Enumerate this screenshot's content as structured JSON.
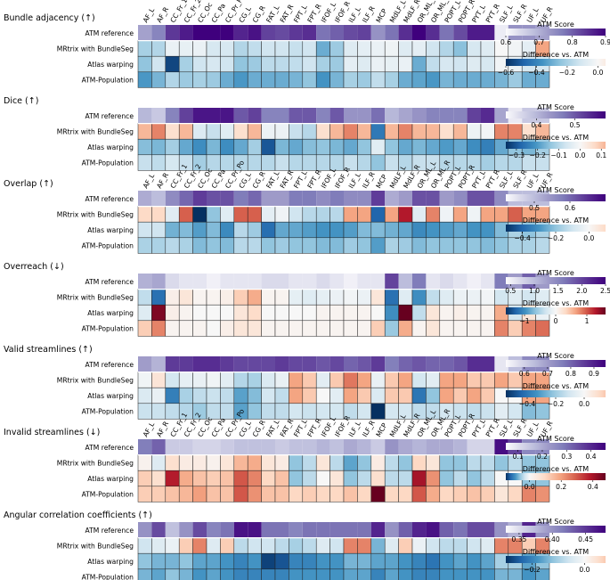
{
  "tracts": [
    "AF_L",
    "AF_R",
    "CC_Fr_1",
    "CC_Fr_2",
    "CC_Oc",
    "CC_Pa",
    "CC_Pr_Po",
    "CG_L",
    "CG_R",
    "FAT_L",
    "FAT_R",
    "FPT_L",
    "FPT_R",
    "IFOF_L",
    "IFOF_R",
    "ILF_L",
    "ILF_R",
    "MCP",
    "MdLF_L",
    "MdLF_R",
    "OR_ML_L",
    "OR_ML_R",
    "POPT_L",
    "POPT_R",
    "PYT_L",
    "PYT_R",
    "SLF_L",
    "SLF_R",
    "UF_L",
    "UF_R"
  ],
  "row_labels": [
    "ATM reference",
    "MRtrix with BundleSeg",
    "Atlas warping",
    "ATM-Population"
  ],
  "colorbar_titles": {
    "score": "ATM Score",
    "diff": "Difference vs. ATM"
  },
  "colors": {
    "purple_dark": "#3f007d",
    "purple_light": "#fcfbfd",
    "blue_dark": "#053061",
    "red_dark": "#67001f",
    "white": "#f7f7f7"
  },
  "chart_data": [
    {
      "type": "heatmap",
      "title": "Bundle adjacency (↑)",
      "show_tract_labels": true,
      "score_range": [
        0.6,
        0.9
      ],
      "score_ticks": [
        "0.6",
        "0.7",
        "0.8",
        "0.9"
      ],
      "diff_range": [
        -0.6,
        0.05
      ],
      "diff_ticks": [
        "−0.6",
        "−0.4",
        "−0.2",
        "0.0"
      ],
      "reference": [
        0.72,
        0.76,
        0.84,
        0.87,
        0.92,
        0.9,
        0.9,
        0.86,
        0.88,
        0.83,
        0.82,
        0.84,
        0.85,
        0.78,
        0.8,
        0.82,
        0.83,
        0.74,
        0.78,
        0.85,
        0.9,
        0.85,
        0.78,
        0.82,
        0.87,
        0.87,
        0.62,
        0.74,
        0.74,
        0.72
      ],
      "methods": [
        [
          -0.2,
          -0.18,
          -0.04,
          -0.05,
          -0.04,
          -0.1,
          -0.1,
          -0.18,
          -0.15,
          -0.12,
          -0.12,
          -0.14,
          -0.12,
          -0.3,
          -0.22,
          -0.08,
          -0.06,
          -0.04,
          -0.03,
          -0.08,
          -0.06,
          -0.12,
          -0.18,
          -0.25,
          -0.1,
          -0.08,
          0.0,
          -0.02,
          -0.06,
          0.02
        ],
        [
          -0.24,
          -0.12,
          -0.55,
          -0.2,
          -0.12,
          -0.1,
          -0.12,
          -0.24,
          -0.22,
          -0.16,
          -0.16,
          -0.15,
          -0.12,
          -0.2,
          -0.22,
          -0.06,
          -0.08,
          -0.04,
          -0.05,
          -0.04,
          -0.3,
          -0.15,
          -0.1,
          -0.12,
          -0.08,
          -0.1,
          -0.02,
          -0.04,
          -0.1,
          -0.1
        ],
        [
          -0.35,
          -0.28,
          -0.18,
          -0.22,
          -0.2,
          -0.22,
          -0.3,
          -0.35,
          -0.3,
          -0.3,
          -0.3,
          -0.28,
          -0.24,
          -0.36,
          -0.28,
          -0.2,
          -0.22,
          -0.15,
          -0.2,
          -0.3,
          -0.32,
          -0.35,
          -0.28,
          -0.3,
          -0.3,
          -0.3,
          -0.28,
          -0.22,
          -0.3,
          -0.3
        ]
      ]
    },
    {
      "type": "heatmap",
      "title": "Dice (↑)",
      "show_tract_labels": false,
      "score_range": [
        0.32,
        0.58
      ],
      "score_ticks": [
        "0.4",
        "0.5"
      ],
      "diff_range": [
        -0.35,
        0.12
      ],
      "diff_ticks": [
        "−0.3",
        "−0.2",
        "−0.1",
        "0.0",
        "0.1"
      ],
      "reference": [
        0.4,
        0.38,
        0.46,
        0.52,
        0.56,
        0.56,
        0.56,
        0.5,
        0.52,
        0.46,
        0.46,
        0.5,
        0.5,
        0.46,
        0.5,
        0.44,
        0.44,
        0.48,
        0.4,
        0.42,
        0.44,
        0.46,
        0.46,
        0.46,
        0.52,
        0.54,
        0.42,
        0.34,
        0.38,
        0.38
      ],
      "methods": [
        [
          0.04,
          0.06,
          0.02,
          0.04,
          -0.05,
          -0.08,
          -0.04,
          0.02,
          0.04,
          -0.02,
          -0.02,
          -0.08,
          -0.1,
          0.02,
          0.04,
          0.06,
          0.04,
          -0.25,
          0.04,
          0.06,
          0.04,
          0.04,
          0.02,
          0.04,
          -0.02,
          -0.01,
          0.06,
          0.06,
          0.02,
          0.04
        ],
        [
          -0.15,
          -0.16,
          -0.12,
          -0.18,
          -0.22,
          -0.16,
          -0.22,
          -0.18,
          -0.12,
          -0.3,
          -0.16,
          -0.18,
          -0.15,
          -0.14,
          -0.16,
          -0.18,
          -0.14,
          -0.04,
          -0.14,
          -0.18,
          -0.16,
          -0.18,
          -0.2,
          -0.18,
          -0.22,
          -0.24,
          -0.18,
          -0.14,
          -0.16,
          -0.12
        ],
        [
          -0.08,
          -0.09,
          -0.06,
          -0.08,
          -0.12,
          -0.1,
          -0.1,
          -0.1,
          -0.1,
          -0.1,
          -0.08,
          -0.1,
          -0.1,
          -0.1,
          -0.1,
          -0.08,
          -0.1,
          -0.14,
          -0.08,
          -0.1,
          -0.08,
          -0.08,
          -0.1,
          -0.1,
          -0.1,
          -0.12,
          -0.1,
          -0.1,
          -0.08,
          -0.08
        ]
      ]
    },
    {
      "type": "heatmap",
      "title": "Overlap (↑)",
      "show_tract_labels": true,
      "score_range": [
        0.42,
        0.7
      ],
      "score_ticks": [
        "0.5",
        "0.6"
      ],
      "diff_range": [
        -0.5,
        0.1
      ],
      "diff_ticks": [
        "−0.4",
        "−0.2",
        "0.0"
      ],
      "reference": [
        0.52,
        0.5,
        0.56,
        0.6,
        0.64,
        0.62,
        0.62,
        0.58,
        0.6,
        0.54,
        0.54,
        0.58,
        0.58,
        0.56,
        0.58,
        0.56,
        0.56,
        0.64,
        0.52,
        0.54,
        0.62,
        0.62,
        0.54,
        0.56,
        0.62,
        0.62,
        0.56,
        0.5,
        0.5,
        0.5
      ],
      "methods": [
        [
          0.02,
          0.02,
          -0.06,
          0.06,
          -0.5,
          -0.2,
          -0.06,
          0.06,
          0.06,
          -0.05,
          -0.02,
          -0.1,
          -0.14,
          -0.15,
          -0.14,
          0.04,
          0.04,
          -0.4,
          0.04,
          0.08,
          -0.06,
          0.05,
          -0.02,
          0.04,
          -0.02,
          0.04,
          0.04,
          0.06,
          0.04,
          0.04
        ],
        [
          -0.1,
          -0.1,
          -0.24,
          -0.22,
          -0.28,
          -0.22,
          -0.32,
          -0.14,
          -0.18,
          -0.38,
          -0.26,
          -0.26,
          -0.28,
          -0.3,
          -0.3,
          -0.28,
          -0.22,
          -0.22,
          -0.24,
          -0.26,
          -0.32,
          -0.3,
          -0.28,
          -0.26,
          -0.3,
          -0.3,
          -0.22,
          -0.16,
          -0.2,
          -0.16
        ],
        [
          -0.16,
          -0.16,
          -0.14,
          -0.16,
          -0.22,
          -0.2,
          -0.22,
          -0.14,
          -0.14,
          -0.2,
          -0.18,
          -0.2,
          -0.2,
          -0.22,
          -0.22,
          -0.18,
          -0.2,
          -0.28,
          -0.16,
          -0.18,
          -0.22,
          -0.2,
          -0.2,
          -0.2,
          -0.2,
          -0.22,
          -0.2,
          -0.16,
          -0.16,
          -0.14
        ]
      ]
    },
    {
      "type": "heatmap",
      "title": "Overreach (↓)",
      "show_tract_labels": false,
      "score_range": [
        0.4,
        2.5
      ],
      "score_ticks": [
        "0.5",
        "1.0",
        "1.5",
        "2.0",
        "2.5"
      ],
      "diff_range": [
        -1.6,
        1.6
      ],
      "diff_ticks": [
        "−1",
        "0",
        "1"
      ],
      "reference": [
        1.1,
        1.2,
        0.7,
        0.6,
        0.6,
        0.5,
        0.6,
        0.6,
        0.6,
        0.7,
        0.7,
        0.6,
        0.6,
        0.7,
        0.6,
        0.5,
        0.6,
        0.6,
        2.0,
        1.0,
        1.6,
        0.6,
        0.7,
        0.6,
        0.5,
        0.6,
        1.6,
        1.3,
        1.8,
        1.3
      ],
      "methods": [
        [
          -0.4,
          -1.2,
          0.1,
          0.2,
          0.05,
          0.05,
          0.1,
          0.4,
          0.6,
          0.05,
          0.05,
          -0.15,
          -0.2,
          -0.15,
          -0.1,
          -0.05,
          -0.1,
          0.2,
          -1.2,
          -0.2,
          -1.0,
          -0.4,
          -0.2,
          -0.1,
          -0.1,
          -0.05,
          -0.3,
          -0.2,
          -0.3,
          -0.2
        ],
        [
          -0.2,
          1.5,
          0.1,
          0.05,
          0.0,
          0.0,
          0.0,
          0.2,
          0.3,
          0.0,
          0.0,
          0.0,
          0.0,
          0.05,
          0.05,
          0.05,
          0.05,
          0.0,
          -1.0,
          1.6,
          -0.4,
          0.2,
          0.05,
          0.1,
          0.05,
          0.05,
          0.6,
          -0.3,
          0.2,
          -0.1
        ],
        [
          0.4,
          0.8,
          0.05,
          0.05,
          0.05,
          0.0,
          0.1,
          0.2,
          0.2,
          0.05,
          0.05,
          0.05,
          0.05,
          0.05,
          0.05,
          0.05,
          0.05,
          0.4,
          -0.6,
          0.6,
          0.05,
          0.2,
          0.05,
          0.05,
          0.05,
          0.05,
          0.8,
          0.4,
          0.8,
          0.9
        ]
      ]
    },
    {
      "type": "heatmap",
      "title": "Valid streamlines (↑)",
      "show_tract_labels": false,
      "score_range": [
        0.52,
        0.95
      ],
      "score_ticks": [
        "0.6",
        "0.7",
        "0.8",
        "0.9"
      ],
      "diff_range": [
        -0.55,
        0.15
      ],
      "diff_ticks": [
        "−0.4",
        "−0.2",
        "0.0"
      ],
      "reference": [
        0.7,
        0.66,
        0.86,
        0.86,
        0.88,
        0.88,
        0.86,
        0.84,
        0.84,
        0.84,
        0.86,
        0.84,
        0.84,
        0.82,
        0.84,
        0.8,
        0.82,
        0.86,
        0.76,
        0.8,
        0.82,
        0.8,
        0.8,
        0.82,
        0.88,
        0.88,
        0.56,
        0.64,
        0.74,
        0.74
      ],
      "methods": [
        [
          -0.02,
          0.02,
          -0.1,
          -0.05,
          -0.04,
          -0.02,
          -0.06,
          -0.16,
          -0.18,
          -0.08,
          -0.04,
          0.06,
          0.04,
          -0.06,
          0.04,
          0.08,
          0.06,
          -0.04,
          0.04,
          0.06,
          -0.1,
          -0.06,
          0.06,
          0.06,
          0.04,
          0.04,
          0.06,
          0.04,
          0.06,
          0.06
        ],
        [
          -0.08,
          -0.04,
          -0.38,
          -0.18,
          -0.14,
          -0.12,
          -0.14,
          -0.3,
          -0.24,
          -0.1,
          -0.14,
          0.06,
          0.04,
          0.0,
          -0.06,
          0.06,
          0.04,
          -0.08,
          0.04,
          0.04,
          -0.4,
          -0.22,
          0.06,
          0.04,
          0.06,
          0.04,
          0.0,
          0.0,
          0.06,
          0.06
        ],
        [
          -0.12,
          -0.12,
          -0.14,
          -0.16,
          -0.2,
          -0.14,
          -0.14,
          -0.3,
          -0.22,
          -0.14,
          -0.14,
          -0.1,
          -0.12,
          -0.1,
          -0.1,
          -0.14,
          -0.1,
          -0.55,
          -0.1,
          -0.1,
          -0.14,
          -0.14,
          -0.1,
          -0.12,
          -0.14,
          -0.12,
          -0.06,
          -0.1,
          -0.24,
          -0.22
        ]
      ]
    },
    {
      "type": "heatmap",
      "title": "Invalid streamlines (↓)",
      "show_tract_labels": true,
      "score_range": [
        0.05,
        0.46
      ],
      "score_ticks": [
        "0.1",
        "0.2",
        "0.3",
        "0.4"
      ],
      "diff_range": [
        -0.15,
        0.48
      ],
      "diff_ticks": [
        "0.0",
        "0.2",
        "0.4"
      ],
      "reference": [
        0.28,
        0.32,
        0.14,
        0.14,
        0.12,
        0.12,
        0.14,
        0.16,
        0.16,
        0.16,
        0.14,
        0.16,
        0.16,
        0.18,
        0.16,
        0.2,
        0.18,
        0.14,
        0.24,
        0.2,
        0.18,
        0.2,
        0.2,
        0.18,
        0.12,
        0.12,
        0.44,
        0.36,
        0.26,
        0.26
      ],
      "methods": [
        [
          0.02,
          -0.02,
          0.08,
          0.04,
          0.04,
          0.02,
          0.06,
          0.16,
          0.18,
          0.06,
          0.04,
          -0.06,
          -0.04,
          0.06,
          -0.04,
          -0.08,
          -0.06,
          0.04,
          -0.04,
          -0.06,
          0.1,
          0.06,
          -0.06,
          -0.06,
          -0.04,
          -0.04,
          -0.06,
          -0.04,
          -0.06,
          -0.06
        ],
        [
          0.12,
          0.08,
          0.38,
          0.18,
          0.14,
          0.12,
          0.14,
          0.3,
          0.24,
          0.1,
          0.14,
          -0.06,
          -0.04,
          0.0,
          0.06,
          -0.06,
          -0.04,
          0.08,
          -0.04,
          -0.04,
          0.4,
          0.22,
          -0.06,
          -0.04,
          -0.06,
          -0.04,
          0.0,
          0.0,
          -0.06,
          -0.06
        ],
        [
          0.12,
          0.12,
          0.14,
          0.16,
          0.2,
          0.14,
          0.14,
          0.3,
          0.22,
          0.14,
          0.14,
          0.1,
          0.12,
          0.1,
          0.1,
          0.14,
          0.1,
          0.48,
          0.1,
          0.1,
          0.3,
          0.18,
          0.1,
          0.12,
          0.14,
          0.12,
          0.06,
          0.1,
          0.24,
          0.22
        ]
      ]
    },
    {
      "type": "heatmap",
      "title": "Angular correlation coefficients (↑)",
      "show_tract_labels": false,
      "score_range": [
        0.33,
        0.48
      ],
      "score_ticks": [
        "0.35",
        "0.40",
        "0.45"
      ],
      "diff_range": [
        -0.3,
        0.08
      ],
      "diff_ticks": [
        "−0.2",
        "0.0"
      ],
      "reference": [
        0.4,
        0.44,
        0.37,
        0.4,
        0.44,
        0.41,
        0.42,
        0.47,
        0.47,
        0.42,
        0.42,
        0.41,
        0.42,
        0.42,
        0.42,
        0.42,
        0.42,
        0.46,
        0.4,
        0.43,
        0.46,
        0.47,
        0.43,
        0.42,
        0.44,
        0.44,
        0.4,
        0.38,
        0.46,
        0.4
      ],
      "methods": [
        [
          -0.06,
          -0.04,
          -0.02,
          0.02,
          0.04,
          -0.04,
          0.02,
          -0.08,
          -0.06,
          -0.06,
          -0.08,
          -0.1,
          -0.08,
          -0.04,
          -0.06,
          0.04,
          0.04,
          -0.14,
          -0.04,
          0.02,
          -0.02,
          -0.06,
          -0.08,
          -0.08,
          -0.06,
          -0.04,
          0.04,
          0.04,
          0.02,
          0.04
        ],
        [
          -0.12,
          -0.14,
          -0.14,
          -0.12,
          -0.16,
          -0.16,
          -0.18,
          -0.2,
          -0.18,
          -0.28,
          -0.26,
          -0.2,
          -0.2,
          -0.18,
          -0.18,
          -0.14,
          -0.14,
          -0.16,
          -0.16,
          -0.18,
          -0.2,
          -0.22,
          -0.18,
          -0.16,
          -0.18,
          -0.16,
          -0.1,
          -0.1,
          -0.16,
          -0.12
        ],
        [
          -0.14,
          -0.16,
          -0.12,
          -0.14,
          -0.18,
          -0.16,
          -0.18,
          -0.2,
          -0.2,
          -0.2,
          -0.2,
          -0.18,
          -0.18,
          -0.18,
          -0.18,
          -0.16,
          -0.16,
          -0.2,
          -0.16,
          -0.18,
          -0.2,
          -0.2,
          -0.18,
          -0.18,
          -0.18,
          -0.18,
          -0.14,
          -0.14,
          -0.18,
          -0.16
        ]
      ]
    }
  ]
}
